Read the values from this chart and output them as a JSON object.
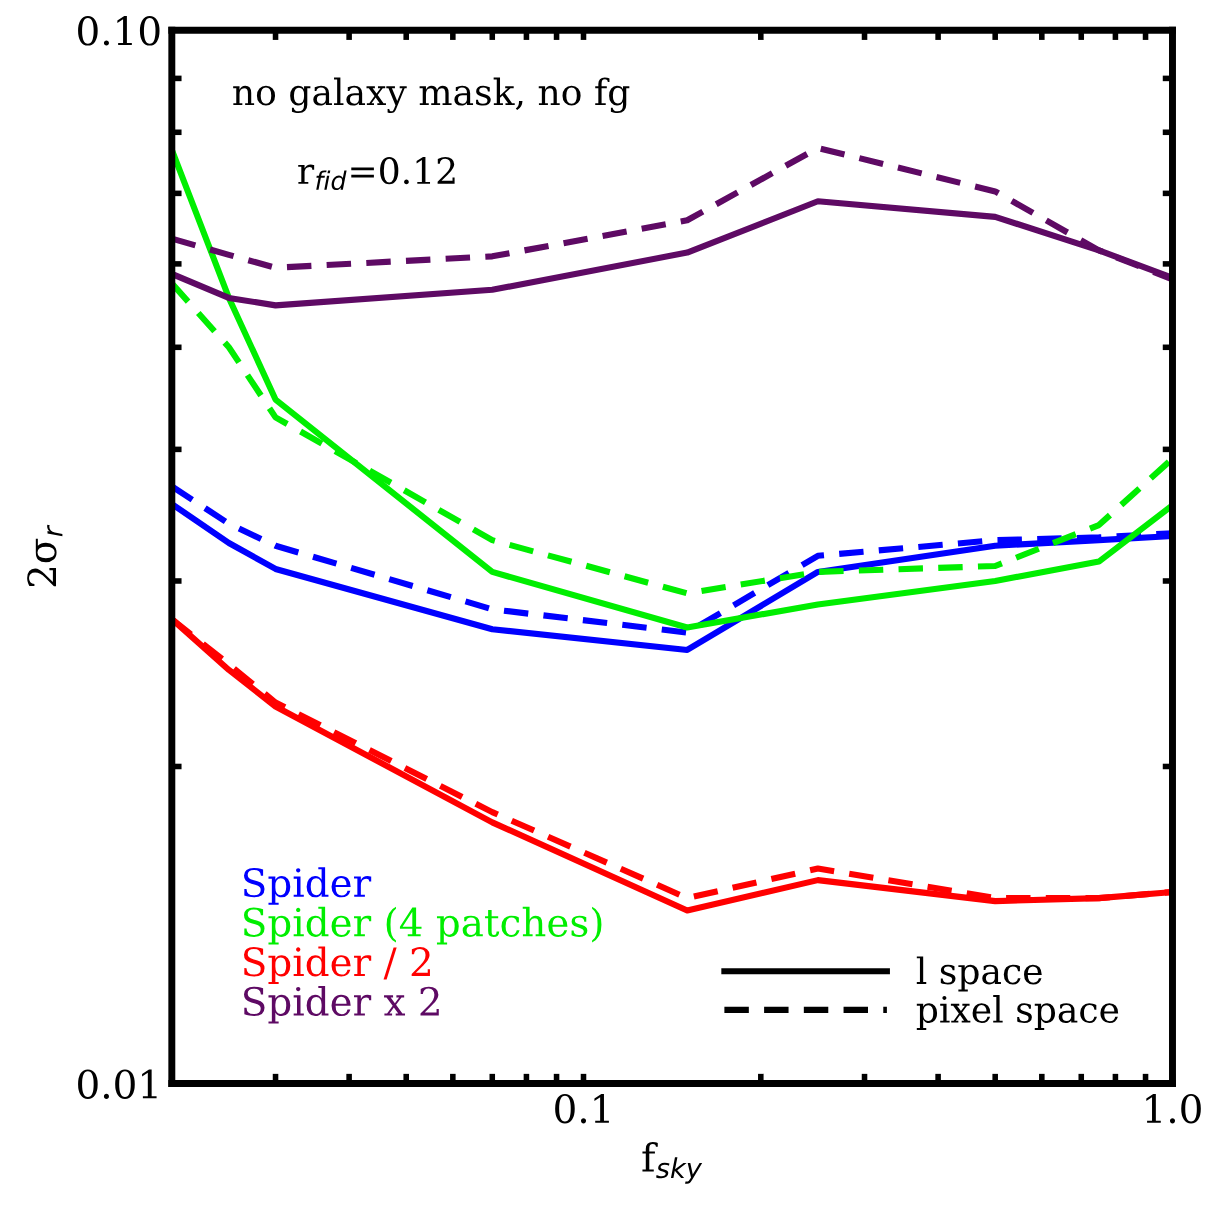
{
  "chart_data": {
    "type": "line",
    "xlabel": "f$_{sky}$",
    "ylabel": "2σ$_{r}$",
    "log": "xy",
    "xlim": [
      0.02,
      1.0
    ],
    "ylim": [
      0.01,
      0.1
    ],
    "xticks": [
      {
        "value": 0.03,
        "label": null
      },
      {
        "value": 0.04,
        "label": null
      },
      {
        "value": 0.05,
        "label": null
      },
      {
        "value": 0.06,
        "label": null
      },
      {
        "value": 0.07,
        "label": null
      },
      {
        "value": 0.08,
        "label": null
      },
      {
        "value": 0.09,
        "label": null
      },
      {
        "value": 0.1,
        "label": "0.1"
      },
      {
        "value": 0.2,
        "label": null
      },
      {
        "value": 0.3,
        "label": null
      },
      {
        "value": 0.4,
        "label": null
      },
      {
        "value": 0.5,
        "label": null
      },
      {
        "value": 0.6,
        "label": null
      },
      {
        "value": 0.7,
        "label": null
      },
      {
        "value": 0.8,
        "label": null
      },
      {
        "value": 0.9,
        "label": null
      },
      {
        "value": 1.0,
        "label": "1.0"
      }
    ],
    "yticks": [
      {
        "value": 0.01,
        "label": "0.01"
      },
      {
        "value": 0.02,
        "label": null
      },
      {
        "value": 0.03,
        "label": null
      },
      {
        "value": 0.04,
        "label": null
      },
      {
        "value": 0.05,
        "label": null
      },
      {
        "value": 0.06,
        "label": null
      },
      {
        "value": 0.07,
        "label": null
      },
      {
        "value": 0.08,
        "label": null
      },
      {
        "value": 0.09,
        "label": null
      },
      {
        "value": 0.1,
        "label": "0.10"
      }
    ],
    "x": [
      0.02,
      0.025,
      0.03,
      0.07,
      0.15,
      0.25,
      0.5,
      0.75,
      1.0
    ],
    "grid": false,
    "legend": "bottom left",
    "marker": "none",
    "annotations": [
      "no galaxy mask, no fg",
      "r$_{fid}$=0.12",
      "l space",
      "pixel space"
    ],
    "series": [
      {
        "name": "Spider",
        "color": "#0000ff",
        "line_style": "solid",
        "values": [
          0.0355,
          0.0326,
          0.0308,
          0.027,
          0.0258,
          0.0306,
          0.0324,
          0.0328,
          0.0331
        ]
      },
      {
        "color": "#0000ff",
        "line_style": "dashed",
        "values": [
          0.0369,
          0.034,
          0.0324,
          0.0282,
          0.0268,
          0.0317,
          0.0328,
          0.033,
          0.0333
        ]
      },
      {
        "name": "Spider (4 patches)",
        "color": "#00ee00",
        "line_style": "solid",
        "values": [
          0.077,
          0.0557,
          0.0446,
          0.0306,
          0.0271,
          0.0285,
          0.03,
          0.0313,
          0.0354
        ]
      },
      {
        "color": "#00ee00",
        "line_style": "dashed",
        "values": [
          0.0575,
          0.05,
          0.0429,
          0.0328,
          0.0292,
          0.0306,
          0.031,
          0.0339,
          0.0392
        ]
      },
      {
        "name": "Spider / 2",
        "color": "#ff0000",
        "line_style": "solid",
        "values": [
          0.0276,
          0.0247,
          0.0228,
          0.0177,
          0.0146,
          0.0156,
          0.0149,
          0.015,
          0.0152
        ]
      },
      {
        "color": "#ff0000",
        "line_style": "dashed",
        "values": [
          0.0276,
          0.025,
          0.023,
          0.0181,
          0.015,
          0.016,
          0.015,
          0.015,
          0.0152
        ]
      },
      {
        "name": "Spider x 2",
        "color": "#5e0a64",
        "line_style": "solid",
        "values": [
          0.0587,
          0.0557,
          0.0548,
          0.0567,
          0.0615,
          0.0688,
          0.0665,
          0.0618,
          0.0582
        ]
      },
      {
        "color": "#5e0a64",
        "line_style": "dashed",
        "values": [
          0.0634,
          0.0612,
          0.0595,
          0.061,
          0.066,
          0.0773,
          0.0703,
          0.0618,
          0.058
        ]
      }
    ]
  }
}
